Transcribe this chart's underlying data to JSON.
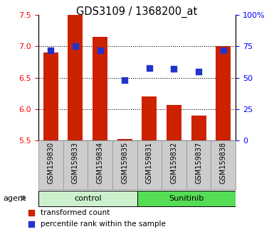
{
  "title": "GDS3109 / 1368200_at",
  "samples": [
    "GSM159830",
    "GSM159833",
    "GSM159834",
    "GSM159835",
    "GSM159831",
    "GSM159832",
    "GSM159837",
    "GSM159838"
  ],
  "red_values": [
    6.9,
    7.5,
    7.15,
    5.52,
    6.2,
    6.07,
    5.9,
    7.0
  ],
  "blue_percentiles": [
    72,
    75,
    72,
    48,
    58,
    57,
    55,
    72
  ],
  "ylim_left": [
    5.5,
    7.5
  ],
  "ylim_right": [
    0,
    100
  ],
  "yticks_left": [
    5.5,
    6.0,
    6.5,
    7.0,
    7.5
  ],
  "yticks_right": [
    0,
    25,
    50,
    75,
    100
  ],
  "ytick_labels_right": [
    "0",
    "25",
    "50",
    "75",
    "100%"
  ],
  "groups": [
    {
      "label": "control",
      "start": 0,
      "end": 3,
      "color": "#ccf0cc"
    },
    {
      "label": "Sunitinib",
      "start": 4,
      "end": 7,
      "color": "#55dd55"
    }
  ],
  "bar_color": "#cc2200",
  "dot_color": "#2233cc",
  "bar_bottom": 5.5,
  "agent_label": "agent",
  "legend_red": "transformed count",
  "legend_blue": "percentile rank within the sample",
  "bar_width": 0.6,
  "dot_size": 28,
  "gridlines": [
    6.0,
    6.5,
    7.0
  ],
  "sample_box_color": "#cccccc",
  "sample_box_edge": "#999999"
}
